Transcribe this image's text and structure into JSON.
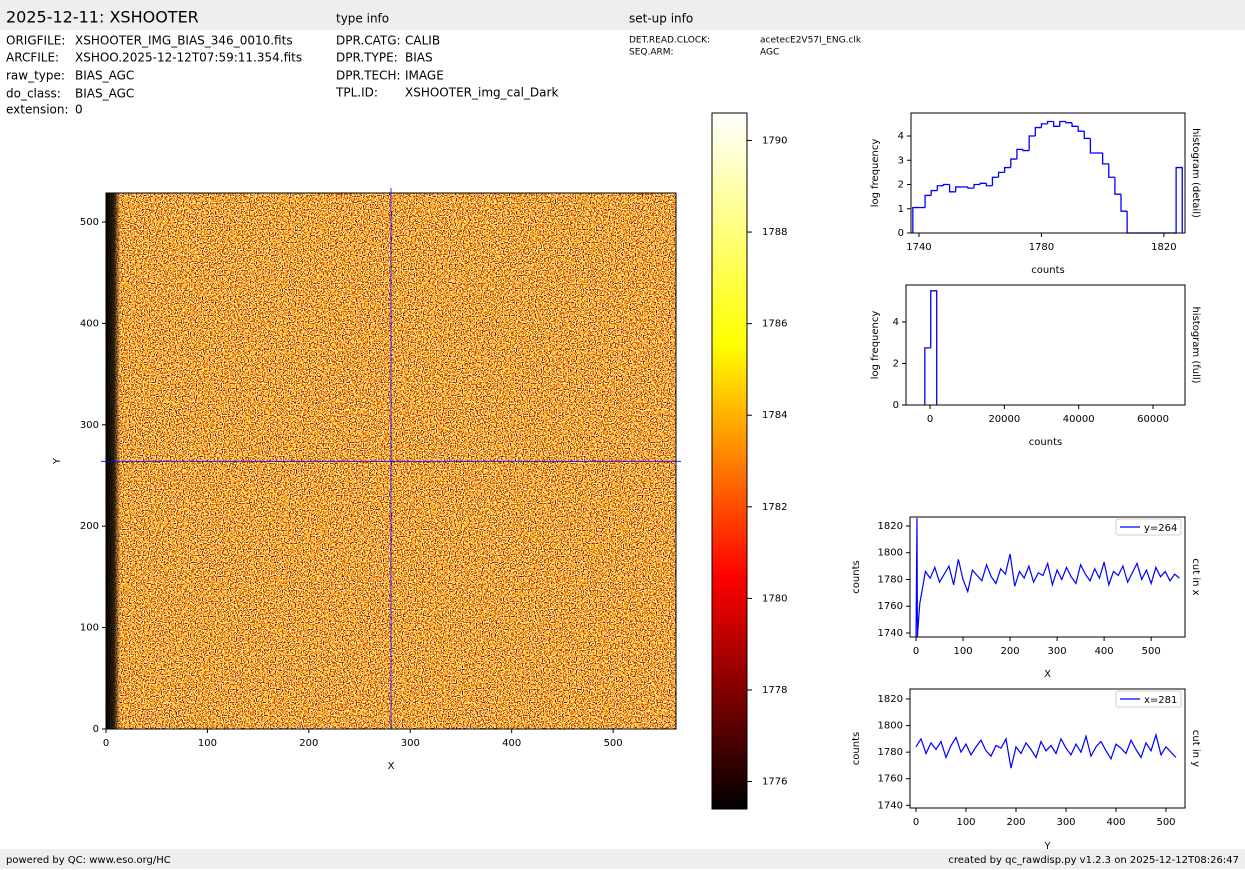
{
  "header": {
    "title": "2025-12-11: XSHOOTER",
    "type_title": "type info",
    "setup_title": "set-up info"
  },
  "file_info": [
    {
      "key": "ORIGFILE:",
      "value": "XSHOOTER_IMG_BIAS_346_0010.fits"
    },
    {
      "key": "ARCFILE:",
      "value": "XSHOO.2025-12-12T07:59:11.354.fits"
    },
    {
      "key": "raw_type:",
      "value": "BIAS_AGC"
    },
    {
      "key": "do_class:",
      "value": "BIAS_AGC"
    },
    {
      "key": "extension:",
      "value": "0"
    }
  ],
  "type_info": [
    {
      "key": "DPR.CATG:",
      "value": "CALIB"
    },
    {
      "key": "DPR.TYPE:",
      "value": "BIAS"
    },
    {
      "key": "DPR.TECH:",
      "value": "IMAGE"
    },
    {
      "key": "TPL.ID:",
      "value": "XSHOOTER_img_cal_Dark"
    }
  ],
  "setup_info": [
    {
      "key": "DET.READ.CLOCK:",
      "value": "acetecE2V57I_ENG.clk"
    },
    {
      "key": "SEQ.ARM:",
      "value": "AGC"
    }
  ],
  "footer": {
    "left": "powered by QC: www.eso.org/HC",
    "right": "created by qc_rawdisp.py v1.2.3 on 2025-12-12T08:26:47"
  },
  "chart_data": [
    {
      "type": "heatmap",
      "x_label": "X",
      "y_label": "Y",
      "xlim": [
        0,
        562
      ],
      "ylim": [
        0,
        528.6
      ],
      "xticks": [
        0,
        100,
        200,
        300,
        400,
        500
      ],
      "yticks": [
        0,
        100,
        200,
        300,
        400,
        500
      ],
      "crosshair": {
        "x": 281,
        "y": 264,
        "color": "#0000ff"
      }
    },
    {
      "type": "colorbar",
      "ylim": [
        1775.4,
        1790.6
      ],
      "yticks": [
        1776,
        1778,
        1780,
        1782,
        1784,
        1786,
        1788,
        1790
      ],
      "colors": [
        "#000000",
        "#ff0000",
        "#ffff00",
        "#ffffff"
      ]
    },
    {
      "type": "histogram",
      "x_label": "counts",
      "y_label": "log frequency",
      "side_label": "histogram (detail)",
      "xlim": [
        1737.4,
        1826.9
      ],
      "ylim": [
        0,
        4.95
      ],
      "xticks": [
        1740,
        1780,
        1820
      ],
      "yticks": [
        0,
        1,
        2,
        3,
        4
      ],
      "color": "#0000ff",
      "bins": [
        1738,
        1740,
        1742,
        1744,
        1746,
        1748,
        1750,
        1752,
        1754,
        1756,
        1758,
        1760,
        1762,
        1764,
        1766,
        1768,
        1770,
        1772,
        1774,
        1776,
        1778,
        1780,
        1782,
        1784,
        1786,
        1788,
        1790,
        1792,
        1794,
        1796,
        1798,
        1800,
        1802,
        1804,
        1806,
        1808,
        1810,
        1812,
        1814,
        1816,
        1818,
        1820,
        1822,
        1824,
        1826
      ],
      "values": [
        1.05,
        1.05,
        1.55,
        1.75,
        1.95,
        2.0,
        1.7,
        1.9,
        1.9,
        1.85,
        2.0,
        2.05,
        1.95,
        2.3,
        2.5,
        2.7,
        3.05,
        3.45,
        3.4,
        4.0,
        4.35,
        4.5,
        4.6,
        4.4,
        4.6,
        4.55,
        4.4,
        4.2,
        3.9,
        3.3,
        3.3,
        2.85,
        2.3,
        1.6,
        0.9,
        0,
        0,
        0,
        0,
        0,
        0,
        0,
        0,
        2.7
      ]
    },
    {
      "type": "histogram",
      "x_label": "counts",
      "y_label": "log frequency",
      "side_label": "histogram (full)",
      "xlim": [
        -6460,
        68600
      ],
      "ylim": [
        0,
        5.78
      ],
      "xticks": [
        0,
        20000,
        40000,
        60000
      ],
      "yticks": [
        0,
        2,
        4
      ],
      "color": "#0000ff",
      "bins": [
        -1400,
        200,
        1800
      ],
      "values": [
        2.75,
        5.5
      ]
    },
    {
      "type": "line",
      "x_label": "X",
      "y_label": "counts",
      "side_label": "cut in x",
      "xlim": [
        -12.8,
        572
      ],
      "ylim": [
        1737,
        1826.7
      ],
      "xticks": [
        0,
        100,
        200,
        300,
        400,
        500
      ],
      "yticks": [
        1740,
        1760,
        1780,
        1800,
        1820
      ],
      "x": [
        0,
        2,
        3,
        5,
        8,
        12,
        20,
        30,
        40,
        50,
        60,
        70,
        80,
        90,
        100,
        110,
        120,
        130,
        140,
        150,
        160,
        170,
        180,
        190,
        200,
        210,
        220,
        230,
        240,
        250,
        260,
        270,
        280,
        290,
        300,
        310,
        320,
        330,
        340,
        350,
        360,
        370,
        380,
        390,
        400,
        410,
        420,
        430,
        440,
        450,
        460,
        470,
        480,
        490,
        500,
        510,
        520,
        530,
        540,
        550,
        560
      ],
      "series": [
        {
          "name": "y=264",
          "color": "#0000ff",
          "values": [
            1737,
            1826,
            1737,
            1748,
            1762,
            1770,
            1786,
            1781,
            1789,
            1778,
            1784,
            1790,
            1776,
            1795,
            1780,
            1771,
            1787,
            1783,
            1779,
            1791,
            1782,
            1777,
            1788,
            1784,
            1799,
            1775,
            1786,
            1781,
            1790,
            1778,
            1785,
            1783,
            1792,
            1776,
            1787,
            1780,
            1789,
            1782,
            1777,
            1791,
            1784,
            1779,
            1788,
            1781,
            1793,
            1776,
            1786,
            1783,
            1790,
            1778,
            1785,
            1792,
            1780,
            1787,
            1777,
            1789,
            1782,
            1786,
            1779,
            1784,
            1781
          ]
        }
      ]
    },
    {
      "type": "line",
      "x_label": "Y",
      "y_label": "counts",
      "side_label": "cut in y",
      "xlim": [
        -12,
        538
      ],
      "ylim": [
        1738,
        1827.5
      ],
      "xticks": [
        0,
        100,
        200,
        300,
        400,
        500
      ],
      "yticks": [
        1740,
        1760,
        1780,
        1800,
        1820
      ],
      "x": [
        0,
        10,
        20,
        30,
        40,
        50,
        60,
        70,
        80,
        90,
        100,
        110,
        120,
        130,
        140,
        150,
        160,
        170,
        180,
        190,
        200,
        210,
        220,
        230,
        240,
        250,
        260,
        270,
        280,
        290,
        300,
        310,
        320,
        330,
        340,
        350,
        360,
        370,
        380,
        390,
        400,
        410,
        420,
        430,
        440,
        450,
        460,
        470,
        480,
        490,
        500,
        510,
        520
      ],
      "series": [
        {
          "name": "x=281",
          "color": "#0000ff",
          "values": [
            1784,
            1790,
            1779,
            1787,
            1782,
            1788,
            1776,
            1785,
            1791,
            1780,
            1786,
            1778,
            1784,
            1789,
            1781,
            1777,
            1785,
            1783,
            1790,
            1768,
            1784,
            1779,
            1787,
            1782,
            1776,
            1788,
            1781,
            1785,
            1779,
            1790,
            1783,
            1778,
            1786,
            1780,
            1792,
            1777,
            1784,
            1788,
            1781,
            1775,
            1786,
            1783,
            1779,
            1789,
            1782,
            1776,
            1787,
            1781,
            1793,
            1778,
            1784,
            1780,
            1776
          ]
        }
      ]
    }
  ]
}
